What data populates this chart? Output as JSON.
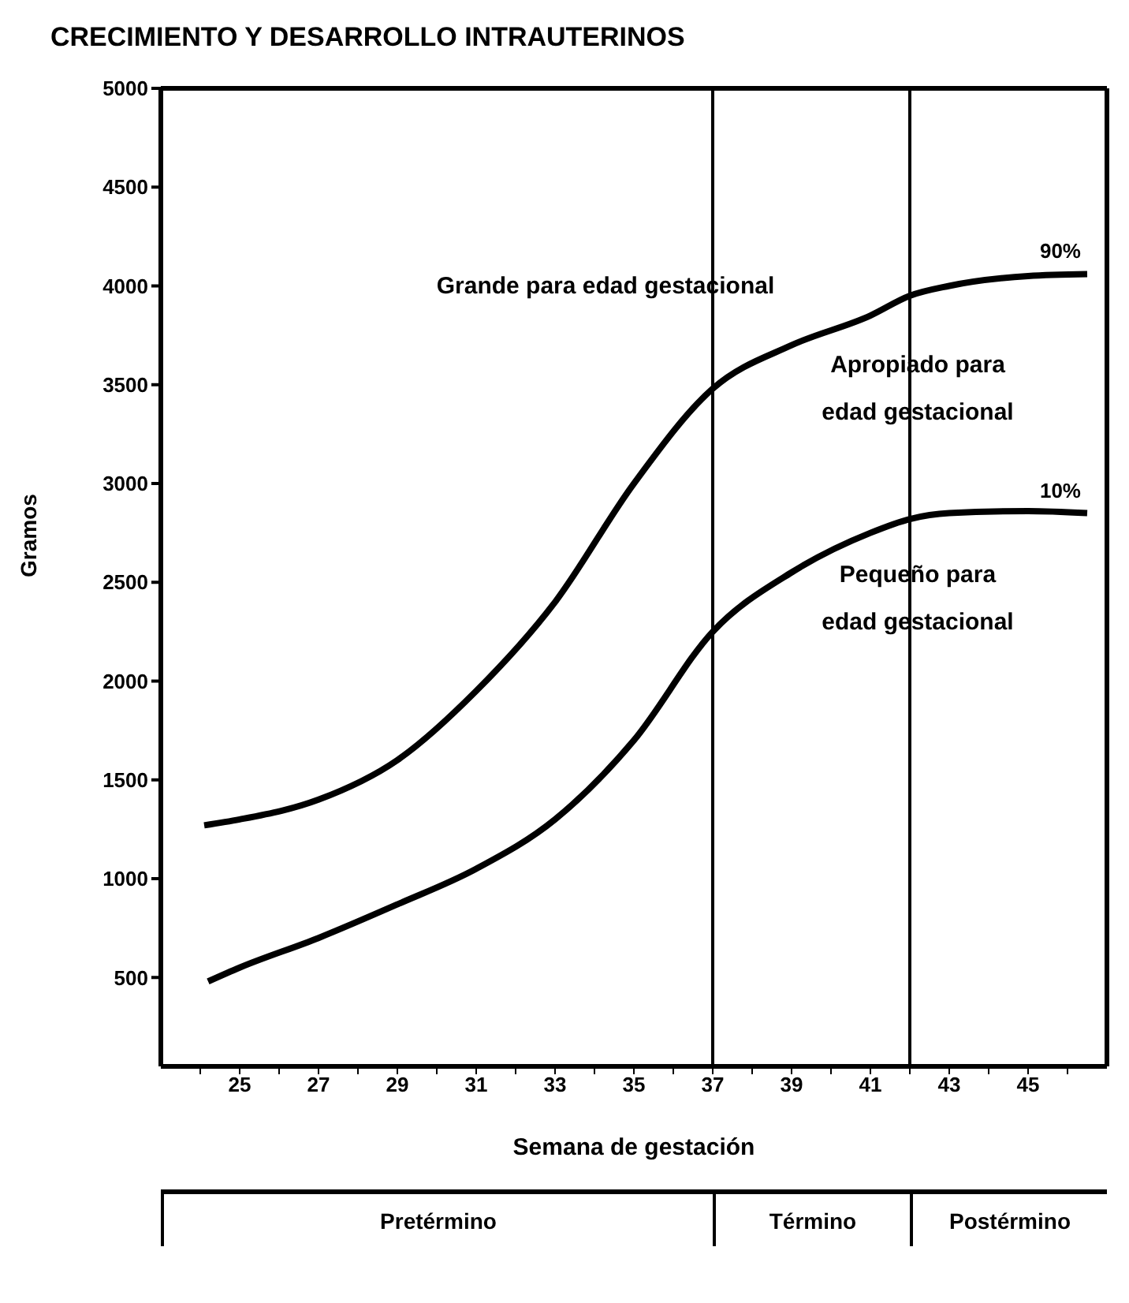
{
  "chart_data": {
    "type": "line",
    "title": "CRECIMIENTO Y DESARROLLO INTRAUTERINOS",
    "xlabel": "Semana de gestación",
    "ylabel": "Gramos",
    "series": [
      {
        "name": "90%",
        "color": "#000000",
        "x": [
          24.1,
          25,
          27,
          29,
          31,
          33,
          35,
          37,
          39,
          41,
          42,
          43,
          45,
          46.5
        ],
        "values": [
          1270,
          1300,
          1400,
          1600,
          1950,
          2400,
          3000,
          3480,
          3700,
          3850,
          3950,
          4000,
          4050,
          4060
        ]
      },
      {
        "name": "10%",
        "color": "#000000",
        "x": [
          24.2,
          25,
          27,
          29,
          31,
          33,
          35,
          37,
          39,
          41,
          42,
          43,
          45,
          46.5
        ],
        "values": [
          480,
          550,
          700,
          870,
          1050,
          1300,
          1700,
          2250,
          2550,
          2750,
          2820,
          2850,
          2860,
          2850
        ]
      }
    ],
    "xlim": [
      23,
      47
    ],
    "ylim": [
      50,
      5000
    ],
    "xticks": [
      {
        "value": 24,
        "label": null
      },
      25,
      {
        "value": 26,
        "label": null
      },
      27,
      {
        "value": 28,
        "label": null
      },
      29,
      {
        "value": 30,
        "label": null
      },
      31,
      {
        "value": 32,
        "label": null
      },
      33,
      {
        "value": 34,
        "label": null
      },
      35,
      {
        "value": 36,
        "label": null
      },
      37,
      {
        "value": 38,
        "label": null
      },
      39,
      {
        "value": 40,
        "label": null
      },
      41,
      {
        "value": 42,
        "label": null
      },
      43,
      {
        "value": 44,
        "label": null
      },
      45,
      {
        "value": 46,
        "label": null
      }
    ],
    "yticks": [
      500,
      1000,
      1500,
      2000,
      2500,
      3000,
      3500,
      4000,
      4500,
      5000
    ],
    "ref_lines": [
      {
        "axis": "x",
        "value": 37,
        "color": "#000000"
      },
      {
        "axis": "x",
        "value": 42,
        "color": "#000000"
      }
    ],
    "annotations": [
      "Grande para edad gestacional",
      "Apropiado para\nedad gestacional",
      "Pequeño para\nedad gestacional",
      "Pretérmino",
      "Término",
      "Postérmino"
    ],
    "marker": "none",
    "line_style": "solid"
  }
}
